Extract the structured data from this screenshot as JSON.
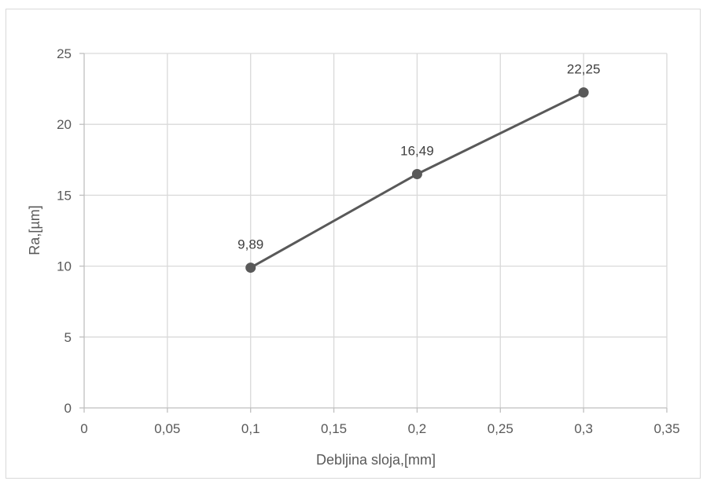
{
  "chart_data": {
    "type": "line",
    "title": "",
    "xlabel": "Debljina sloja,[mm]",
    "ylabel": "Ra,[µm]",
    "xlim": [
      0,
      0.35
    ],
    "ylim": [
      0,
      25
    ],
    "x_ticks": [
      0,
      0.05,
      0.1,
      0.15,
      0.2,
      0.25,
      0.3,
      0.35
    ],
    "x_tick_labels": [
      "0",
      "0,05",
      "0,1",
      "0,15",
      "0,2",
      "0,25",
      "0,3",
      "0,35"
    ],
    "y_ticks": [
      0,
      5,
      10,
      15,
      20,
      25
    ],
    "y_tick_labels": [
      "0",
      "5",
      "10",
      "15",
      "20",
      "25"
    ],
    "grid": true,
    "series": [
      {
        "x": [
          0.1,
          0.2,
          0.3
        ],
        "y": [
          9.89,
          16.49,
          22.25
        ],
        "labels": [
          "9,89",
          "16,49",
          "22,25"
        ],
        "color": "#595959"
      }
    ]
  }
}
